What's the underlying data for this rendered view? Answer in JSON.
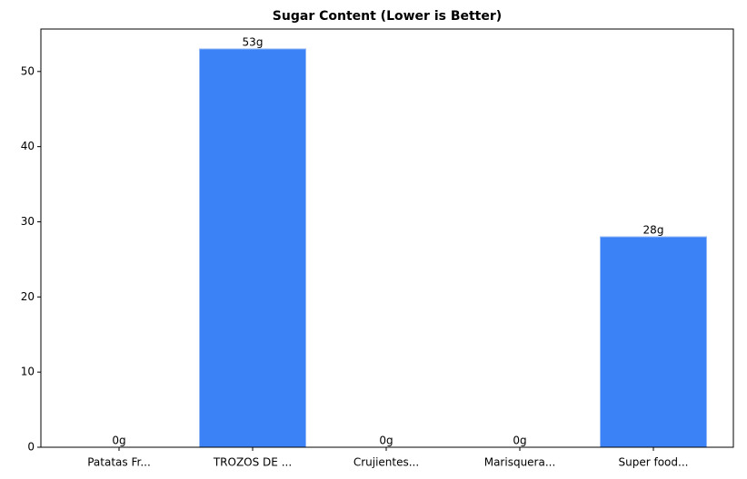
{
  "chart_data": {
    "type": "bar",
    "title": "Sugar Content (Lower is Better)",
    "categories": [
      "Patatas Fr...",
      "TROZOS DE ...",
      "Crujientes...",
      "Marisquera...",
      "Super food..."
    ],
    "values": [
      0,
      53,
      0,
      0,
      28
    ],
    "value_labels": [
      "0g",
      "53g",
      "0g",
      "0g",
      "28g"
    ],
    "color": "#3b82f6",
    "ylim": [
      0,
      55.65
    ],
    "yticks": [
      0,
      10,
      20,
      30,
      40,
      50
    ],
    "grid": false
  }
}
